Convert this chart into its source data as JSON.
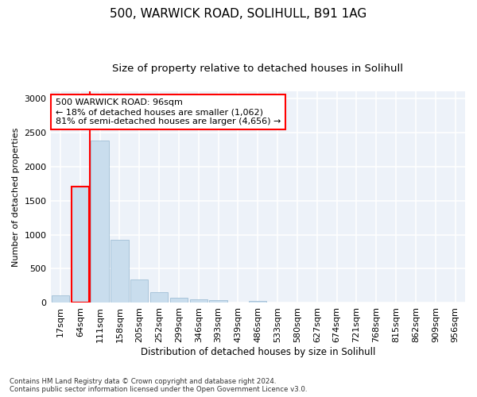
{
  "title1": "500, WARWICK ROAD, SOLIHULL, B91 1AG",
  "title2": "Size of property relative to detached houses in Solihull",
  "xlabel": "Distribution of detached houses by size in Solihull",
  "ylabel": "Number of detached properties",
  "categories": [
    "17sqm",
    "64sqm",
    "111sqm",
    "158sqm",
    "205sqm",
    "252sqm",
    "299sqm",
    "346sqm",
    "393sqm",
    "439sqm",
    "486sqm",
    "533sqm",
    "580sqm",
    "627sqm",
    "674sqm",
    "721sqm",
    "768sqm",
    "815sqm",
    "862sqm",
    "909sqm",
    "956sqm"
  ],
  "values": [
    110,
    1700,
    2380,
    930,
    340,
    155,
    80,
    55,
    35,
    5,
    30,
    5,
    5,
    0,
    0,
    0,
    0,
    0,
    0,
    0,
    0
  ],
  "bar_color": "#c9dded",
  "bar_edge_color": "#a0bfd6",
  "highlight_bar_index": 1,
  "highlight_edge_color": "red",
  "vline_color": "red",
  "vline_x": 1.5,
  "annotation_text": "500 WARWICK ROAD: 96sqm\n← 18% of detached houses are smaller (1,062)\n81% of semi-detached houses are larger (4,656) →",
  "annotation_box_color": "white",
  "annotation_box_edge_color": "red",
  "ylim": [
    0,
    3100
  ],
  "yticks": [
    0,
    500,
    1000,
    1500,
    2000,
    2500,
    3000
  ],
  "footnote": "Contains HM Land Registry data © Crown copyright and database right 2024.\nContains public sector information licensed under the Open Government Licence v3.0.",
  "background_color": "#edf2f9",
  "grid_color": "white",
  "title1_fontsize": 11,
  "title2_fontsize": 9.5,
  "xlabel_fontsize": 8.5,
  "ylabel_fontsize": 8,
  "tick_fontsize": 8,
  "annotation_fontsize": 8
}
